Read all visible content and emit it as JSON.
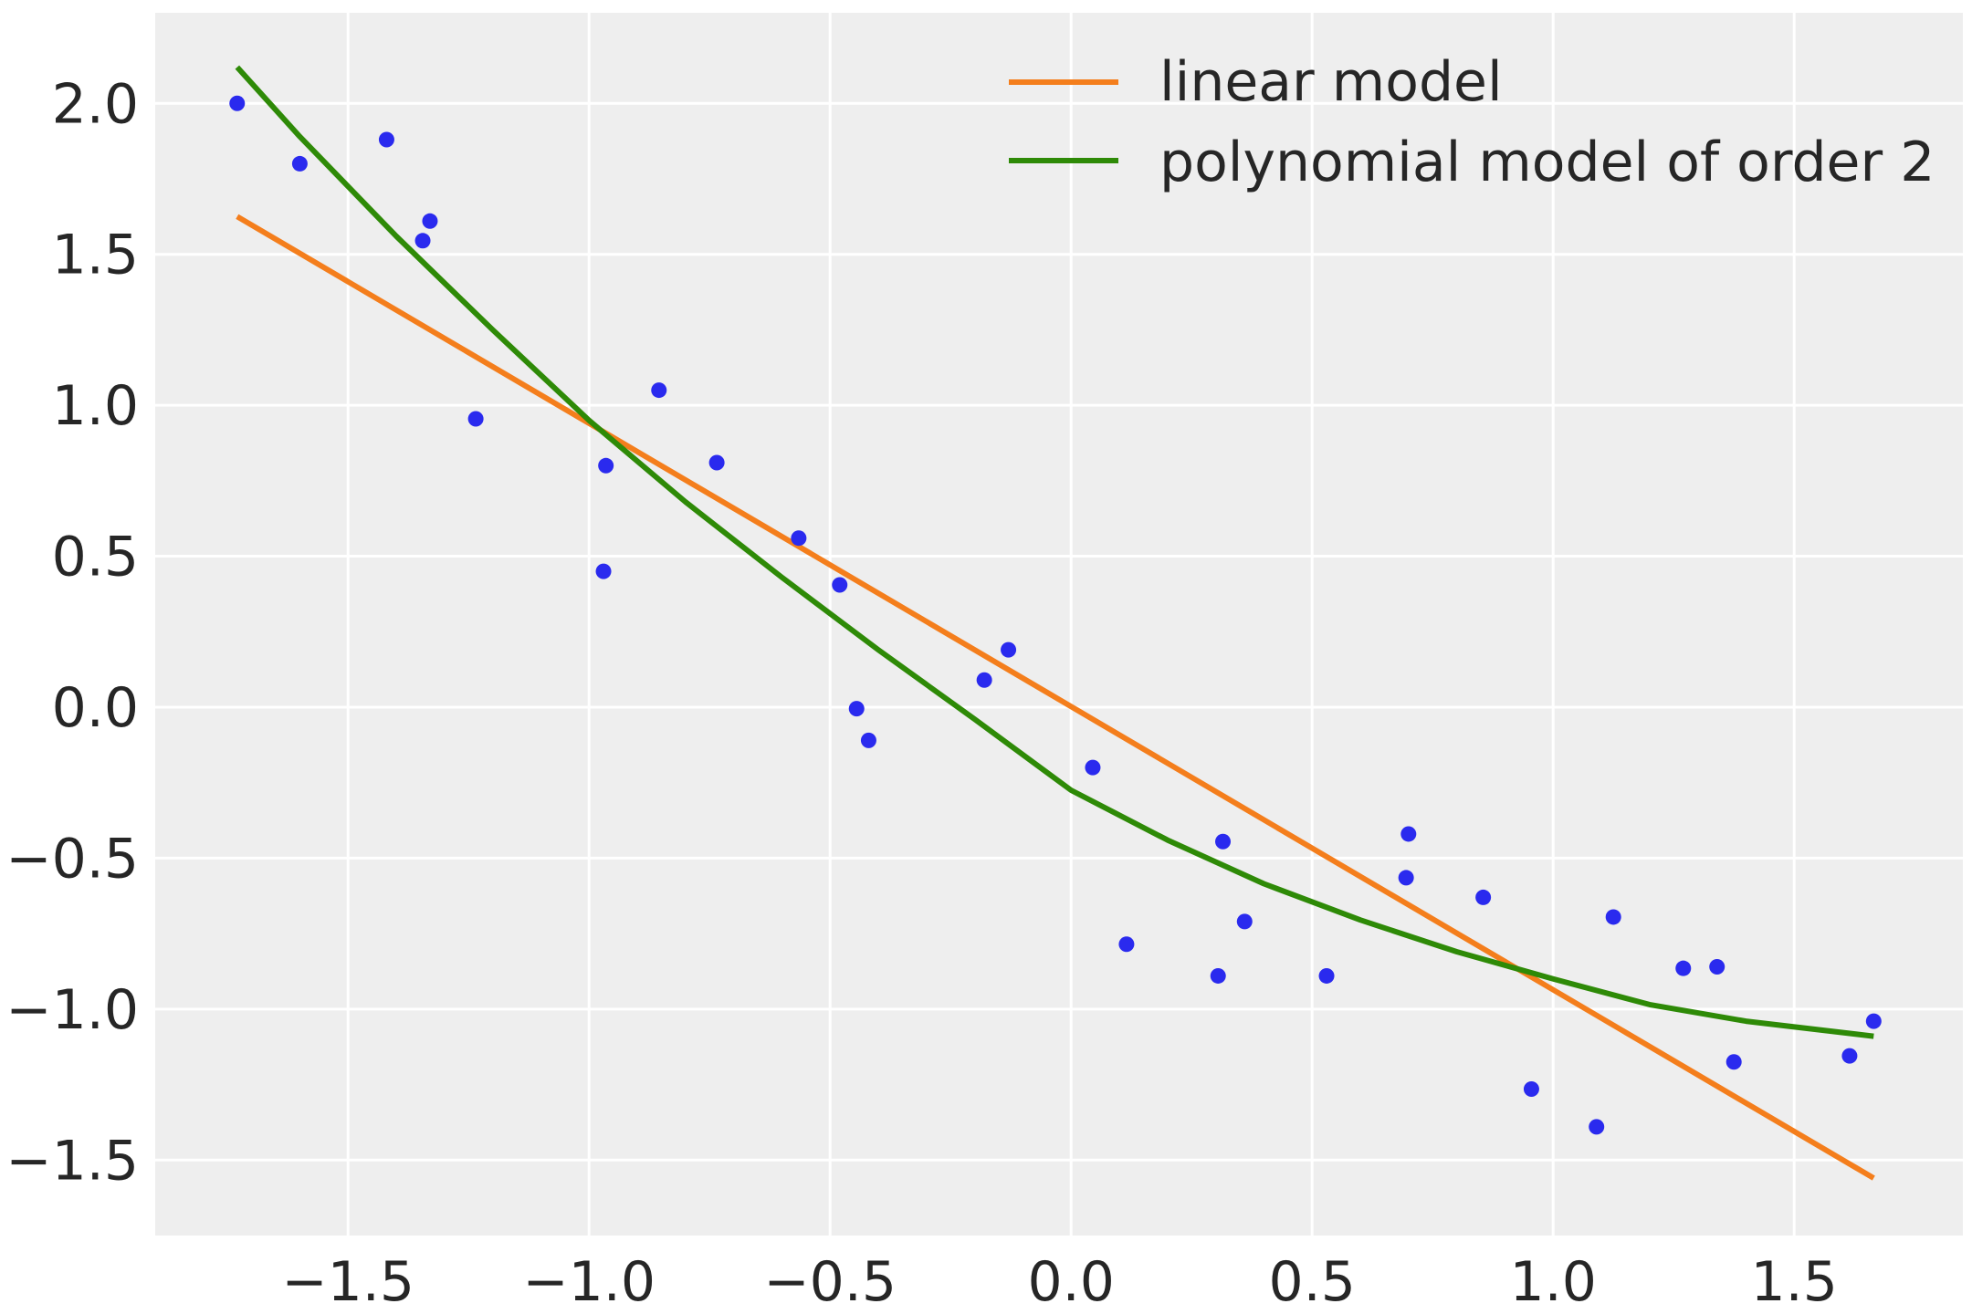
{
  "chart_data": {
    "type": "scatter",
    "title": "",
    "xlabel": "",
    "ylabel": "",
    "xlim": [
      -1.9,
      1.85
    ],
    "ylim": [
      -1.75,
      2.3
    ],
    "xticks": [
      -1.5,
      -1.0,
      -0.5,
      0.0,
      0.5,
      1.0,
      1.5
    ],
    "yticks": [
      -1.5,
      -1.0,
      -0.5,
      0.0,
      0.5,
      1.0,
      1.5,
      2.0
    ],
    "xtick_labels": [
      "−1.5",
      "−1.0",
      "−0.5",
      "0.0",
      "0.5",
      "1.0",
      "1.5"
    ],
    "ytick_labels": [
      "−1.5",
      "−1.0",
      "−0.5",
      "0.0",
      "0.5",
      "1.0",
      "1.5",
      "2.0"
    ],
    "grid": true,
    "legend_position": "top-right",
    "colors": {
      "background": "#eeeeee",
      "grid": "#ffffff",
      "points": "#2a2aee",
      "linear": "#f47e1c",
      "poly": "#2e8a07"
    },
    "points": {
      "x": [
        -1.73,
        -1.6,
        -1.42,
        -1.345,
        -1.33,
        -1.235,
        -0.97,
        -0.965,
        -0.855,
        -0.735,
        -0.565,
        -0.48,
        -0.445,
        -0.42,
        -0.18,
        -0.13,
        0.045,
        0.115,
        0.305,
        0.315,
        0.36,
        0.53,
        0.695,
        0.7,
        0.855,
        0.955,
        1.09,
        1.125,
        1.27,
        1.34,
        1.375,
        1.615,
        1.665
      ],
      "y": [
        2.0,
        1.8,
        1.88,
        1.545,
        1.61,
        0.955,
        0.45,
        0.8,
        1.05,
        0.81,
        0.56,
        0.405,
        -0.005,
        -0.11,
        0.09,
        0.19,
        -0.2,
        -0.785,
        -0.89,
        -0.445,
        -0.71,
        -0.89,
        -0.565,
        -0.42,
        -0.63,
        -1.265,
        -1.39,
        -0.695,
        -0.865,
        -0.86,
        -1.175,
        -1.155,
        -1.04
      ]
    },
    "series": [
      {
        "name": "linear model",
        "x": [
          -1.73,
          1.665
        ],
        "y": [
          1.625,
          -1.56
        ]
      },
      {
        "name": "polynomial model of order 2",
        "x": [
          -1.73,
          -1.6,
          -1.4,
          -1.2,
          -1.0,
          -0.8,
          -0.6,
          -0.4,
          -0.2,
          0.0,
          0.2,
          0.4,
          0.6,
          0.8,
          1.0,
          1.2,
          1.4,
          1.665
        ],
        "y": [
          2.12,
          1.89,
          1.56,
          1.25,
          0.95,
          0.68,
          0.43,
          0.19,
          -0.04,
          -0.275,
          -0.44,
          -0.585,
          -0.705,
          -0.81,
          -0.9,
          -0.985,
          -1.04,
          -1.09
        ]
      }
    ]
  }
}
